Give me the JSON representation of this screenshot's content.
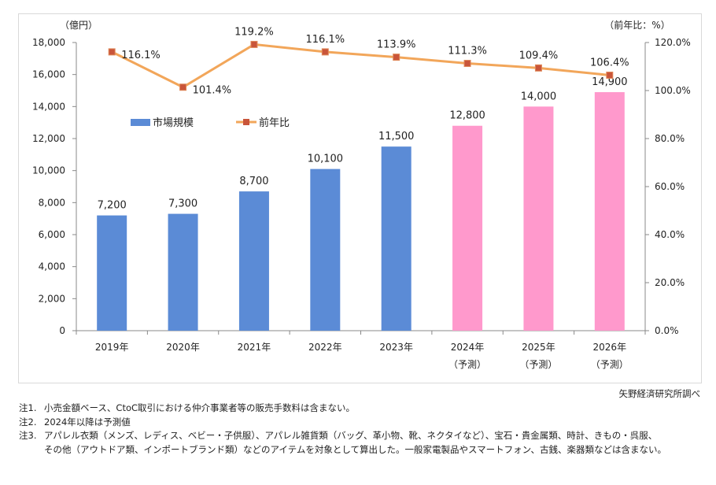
{
  "chart_data": {
    "type": "bar+line",
    "categories": [
      "2019年",
      "2020年",
      "2021年",
      "2022年",
      "2023年",
      "2024年",
      "2025年",
      "2026年"
    ],
    "category_sublabels": [
      "",
      "",
      "",
      "",
      "",
      "（予測）",
      "（予測）",
      "（予測）"
    ],
    "series": [
      {
        "name": "市場規模",
        "type": "bar",
        "axis": "left",
        "values": [
          7200,
          7300,
          8700,
          10100,
          11500,
          12800,
          14000,
          14900
        ],
        "labels": [
          "7,200",
          "7,300",
          "8,700",
          "10,100",
          "11,500",
          "12,800",
          "14,000",
          "14,900"
        ]
      },
      {
        "name": "前年比",
        "type": "line",
        "axis": "right",
        "values": [
          116.1,
          101.4,
          119.2,
          116.1,
          113.9,
          111.3,
          109.4,
          106.4
        ],
        "labels": [
          "116.1%",
          "101.4%",
          "119.2%",
          "116.1%",
          "113.9%",
          "111.3%",
          "109.4%",
          "106.4%"
        ]
      }
    ],
    "forecast_from_index": 5,
    "left_axis": {
      "unit_label": "（億円）",
      "range": [
        0,
        18000
      ],
      "ticks": [
        "0",
        "2,000",
        "4,000",
        "6,000",
        "8,000",
        "10,000",
        "12,000",
        "14,000",
        "16,000",
        "18,000"
      ]
    },
    "right_axis": {
      "unit_label": "（前年比：%）",
      "range": [
        0,
        120
      ],
      "ticks": [
        "0.0%",
        "20.0%",
        "40.0%",
        "60.0%",
        "80.0%",
        "100.0%",
        "120.0%"
      ]
    },
    "legend_placement": "top-left inside plot",
    "grid": false,
    "colors": {
      "bar_actual": "#5B8BD6",
      "bar_forecast": "#FF99CC",
      "line": "#F2A65A",
      "marker": "#C9553A",
      "axis": "#888888"
    }
  },
  "source": "矢野経済研究所調べ",
  "notes": [
    {
      "label": "注1.",
      "text": "小売金額ベース、CtoC取引における仲介事業者等の販売手数料は含まない。"
    },
    {
      "label": "注2.",
      "text": "2024年以降は予測値"
    },
    {
      "label": "注3.",
      "text": "アパレル衣類（メンズ、レディス、ベビー・子供服）、アパレル雑貨類（バッグ、革小物、靴、ネクタイなど）、宝石・貴金属類、時計、きもの・呉服、",
      "cont": "その他（アウトドア類、インポートブランド類）などのアイテムを対象として算出した。一般家電製品やスマートフォン、古銭、楽器類などは含まない。"
    }
  ]
}
